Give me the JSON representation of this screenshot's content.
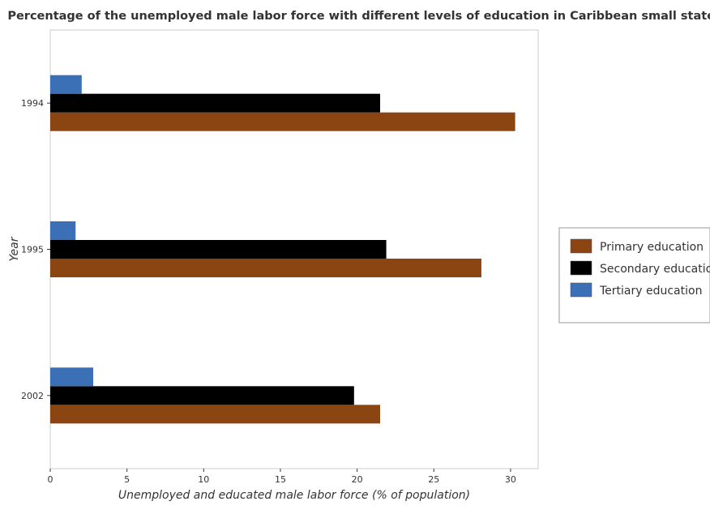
{
  "chart_data": {
    "type": "bar",
    "orientation": "horizontal",
    "title": "Percentage of the unemployed male labor force with different levels of education in Caribbean small states",
    "xlabel": "Unemployed and educated male labor force (% of population)",
    "ylabel": "Year",
    "categories": [
      "1994",
      "1995",
      "2002"
    ],
    "series": [
      {
        "name": "Primary education",
        "color": "#8B4513",
        "values": [
          30.3,
          28.1,
          21.5
        ]
      },
      {
        "name": "Secondary education",
        "color": "#000000",
        "values": [
          21.5,
          21.9,
          19.8
        ]
      },
      {
        "name": "Tertiary education",
        "color": "#3B6FB6",
        "values": [
          2.05,
          1.65,
          2.8
        ]
      }
    ],
    "xlim": [
      0,
      31.8
    ],
    "xticks": [
      0,
      5,
      10,
      15,
      20,
      25,
      30
    ],
    "grid": false,
    "legend_position": "right"
  }
}
